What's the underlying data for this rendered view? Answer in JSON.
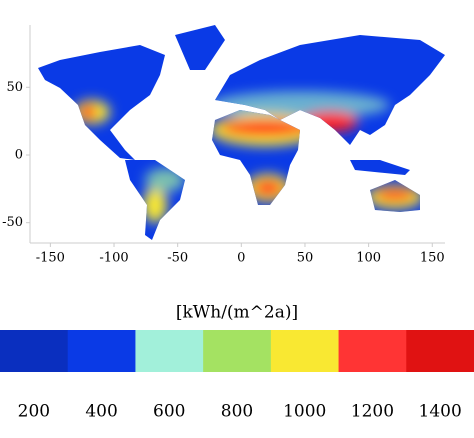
{
  "chart_data": {
    "type": "map",
    "xlim": [
      -166,
      160
    ],
    "xticks": [
      -150,
      -100,
      -50,
      0,
      50,
      100,
      150
    ],
    "ylim": [
      -65,
      96
    ],
    "yticks": [
      -50,
      0,
      50
    ],
    "colorbar": {
      "label": "[kWh/(m^2a)]",
      "ticks": [
        200,
        400,
        600,
        800,
        1000,
        1200,
        1400
      ],
      "colors": [
        "#0a2fbf",
        "#0a3ae6",
        "#a2f0da",
        "#a4e262",
        "#f9e832",
        "#ff3434",
        "#e01212"
      ]
    }
  }
}
